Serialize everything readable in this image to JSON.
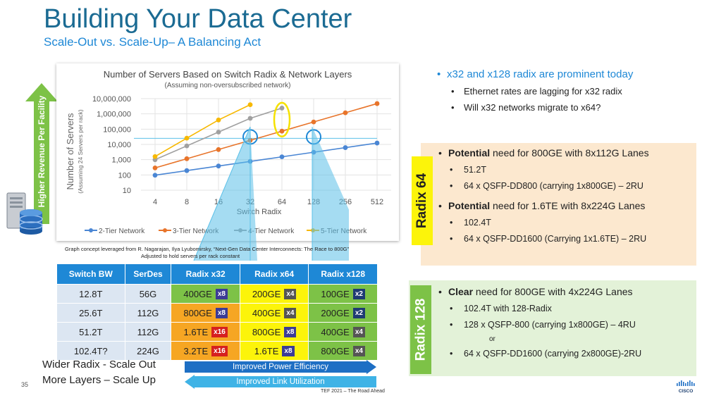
{
  "slide": {
    "title": "Building Your Data Center",
    "subtitle": "Scale-Out vs. Scale-Up– A Balancing Act",
    "page_number": "35",
    "footer": "TEF 2021 – The Road Ahead",
    "brand": "CISCO"
  },
  "left_arrow": {
    "label": "Higher Revenue Per Facility"
  },
  "chart_data": {
    "type": "line",
    "title": "Number of Servers Based on Switch Radix & Network Layers",
    "subtitle": "(Assuming non-oversubscribed network)",
    "ylabel": "Number of Servers",
    "ylabel_sub": "(Assuming 24 Servers per rack)",
    "xlabel": "Switch Radix",
    "categories": [
      "4",
      "8",
      "16",
      "32",
      "64",
      "128",
      "256",
      "512"
    ],
    "y_ticks": [
      "10,000,000",
      "1,000,000",
      "100,000",
      "10,000",
      "1,000",
      "100",
      "10"
    ],
    "y_scale": "log",
    "ylim": [
      10,
      10000000
    ],
    "series": [
      {
        "name": "2-Tier Network",
        "color": "#4a86d4",
        "values": [
          96,
          192,
          384,
          768,
          1536,
          3072,
          6144,
          12288
        ]
      },
      {
        "name": "3-Tier Network",
        "color": "#e8742a",
        "values": [
          288,
          1152,
          4608,
          18432,
          73728,
          294912,
          1179648,
          4718592
        ]
      },
      {
        "name": "4-Tier Network",
        "color": "#a0a0a0",
        "values": [
          1000,
          8000,
          64000,
          512000,
          2400000,
          null,
          null,
          null
        ]
      },
      {
        "name": "5-Tier Network",
        "color": "#f7b800",
        "values": [
          1600,
          25600,
          400000,
          4000000,
          null,
          null,
          null,
          null
        ]
      }
    ],
    "reference_y": 25000,
    "circles_blue": [
      "32",
      "128"
    ],
    "ellipse_yellow": "64"
  },
  "credits": {
    "line1": "Graph concept leveraged from R. Nagarajan, Ilya Lyubomirsky, “Next-Gen Data Center Interconnects: The Race to 800G”",
    "line2": "Adjusted to hold servers per rack constant"
  },
  "table": {
    "headers": [
      "Switch BW",
      "SerDes",
      "Radix x32",
      "Radix x64",
      "Radix x128"
    ],
    "rows": [
      {
        "bw": "12.8T",
        "serdes": "56G",
        "r32": "400GE",
        "r32_tag": "x8",
        "r64": "200GE",
        "r64_tag": "x4",
        "r128": "100GE",
        "r128_tag": "x2"
      },
      {
        "bw": "25.6T",
        "serdes": "112G",
        "r32": "800GE",
        "r32_tag": "x8",
        "r64": "400GE",
        "r64_tag": "x4",
        "r128": "200GE",
        "r128_tag": "x2"
      },
      {
        "bw": "51.2T",
        "serdes": "112G",
        "r32": "1.6TE",
        "r32_tag": "x16",
        "r64": "800GE",
        "r64_tag": "x8",
        "r128": "400GE",
        "r128_tag": "x4"
      },
      {
        "bw": "102.4T?",
        "serdes": "224G",
        "r32": "3.2TE",
        "r32_tag": "x16",
        "r64": "1.6TE",
        "r64_tag": "x8",
        "r128": "800GE",
        "r128_tag": "x4"
      }
    ]
  },
  "bottom": {
    "left1": "Wider Radix - Scale Out",
    "left2": "More Layers – Scale Up",
    "bar1": "Improved Power Efficiency",
    "bar2": "Improved Link Utilization"
  },
  "top_bullets": {
    "main": "x32 and x128 radix are prominent today",
    "sub1": "Ethernet rates are lagging for x32 radix",
    "sub2": "Will x32 networks migrate to x64?"
  },
  "radix64": {
    "label": "Radix 64",
    "b1_bold": "Potential",
    "b1_rest": " need for 800GE with 8x112G Lanes",
    "b1_s1": "51.2T",
    "b1_s2": "64 x QSFP-DD800 (carrying 1x800GE) – 2RU",
    "b2_bold": "Potential",
    "b2_rest": " need for 1.6TE with 8x224G Lanes",
    "b2_s1": "102.4T",
    "b2_s2": "64 x QSFP-DD1600 (Carrying 1x1.6TE) – 2RU"
  },
  "radix128": {
    "label": "Radix 128",
    "b1_bold": "Clear",
    "b1_rest": " need for 800GE with 4x224G Lanes",
    "s1": "102.4T with 128-Radix",
    "s2": "128 x QSFP-800  (carrying 1x800GE) – 4RU",
    "or": "or",
    "s3": "64 x QSFP-DD1600 (carrying 2x800GE)-2RU"
  }
}
